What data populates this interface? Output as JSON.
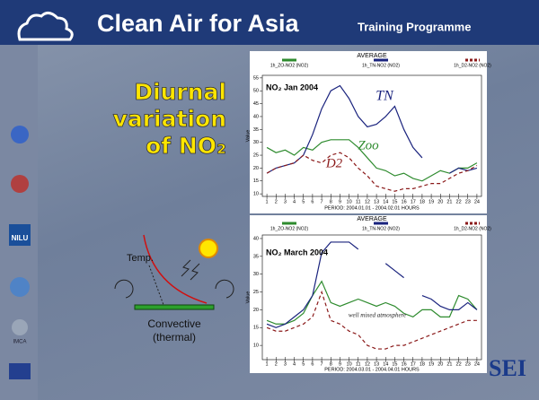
{
  "header": {
    "title": "Clean Air for Asia",
    "subtitle": "Training Programme"
  },
  "slide_title": [
    "Diurnal",
    "variation",
    "of NO₂"
  ],
  "diagram": {
    "temp_label": "Temp.",
    "caption": [
      "Convective",
      "(thermal)"
    ]
  },
  "logos": {
    "nilu": "NILU",
    "imca": "IMCA",
    "sei": "SEI"
  },
  "chart_data": [
    {
      "type": "line",
      "title": "AVERAGE",
      "x_label": "PERIOD: 2004.01.01 - 2004.02.01 HOURS",
      "y_label": "Value",
      "annotations": [
        "NO₂ Jan 2004",
        "TN",
        "Zoo",
        "D2"
      ],
      "x": [
        1,
        2,
        3,
        4,
        5,
        6,
        7,
        8,
        9,
        10,
        11,
        12,
        13,
        14,
        15,
        16,
        17,
        18,
        19,
        20,
        21,
        22,
        23,
        24
      ],
      "xlim": [
        0.5,
        24.5
      ],
      "ylim": [
        9,
        56
      ],
      "yticks": [
        10,
        15,
        20,
        25,
        30,
        35,
        40,
        45,
        50,
        55
      ],
      "series": [
        {
          "name": "1h_ZO-NO2 (NO2)",
          "color": "#2e8b2e",
          "dash": false,
          "values": [
            28,
            26,
            27,
            25,
            28,
            27,
            30,
            31,
            31,
            31,
            28,
            24,
            20,
            19,
            17,
            18,
            16,
            15,
            17,
            19,
            18,
            20,
            20,
            22
          ]
        },
        {
          "name": "1h_TN-NO2 (NO2)",
          "color": "#1a237e",
          "dash": false,
          "values": [
            18,
            20,
            21,
            22,
            25,
            33,
            43,
            50,
            52,
            47,
            40,
            36,
            37,
            40,
            44,
            35,
            28,
            24,
            null,
            null,
            18,
            20,
            19,
            20
          ]
        },
        {
          "name": "1h_D2-NO2 (NO2)",
          "color": "#8b1a1a",
          "dash": true,
          "values": [
            18,
            20,
            21,
            22,
            25,
            23,
            22,
            25,
            26,
            24,
            20,
            17,
            13,
            12,
            11,
            12,
            12,
            13,
            14,
            14,
            16,
            18,
            19,
            21
          ]
        }
      ]
    },
    {
      "type": "line",
      "title": "AVERAGE",
      "x_label": "PERIOD: 2004.03.01 - 2004.04.01 HOURS",
      "y_label": "Value",
      "annotations": [
        "NO₂ March 2004",
        "well mixed atmosphere"
      ],
      "x": [
        1,
        2,
        3,
        4,
        5,
        6,
        7,
        8,
        9,
        10,
        11,
        12,
        13,
        14,
        15,
        16,
        17,
        18,
        19,
        20,
        21,
        22,
        23,
        24
      ],
      "xlim": [
        0.5,
        24.5
      ],
      "ylim": [
        6,
        41
      ],
      "yticks": [
        10,
        15,
        20,
        25,
        30,
        35,
        40
      ],
      "series": [
        {
          "name": "1h_ZO-NO2 (NO2)",
          "color": "#2e8b2e",
          "dash": false,
          "values": [
            17,
            16,
            16,
            17,
            19,
            24,
            28,
            22,
            21,
            22,
            23,
            22,
            21,
            22,
            21,
            19,
            18,
            20,
            20,
            18,
            18,
            24,
            23,
            20
          ]
        },
        {
          "name": "1h_TN-NO2 (NO2)",
          "color": "#1a237e",
          "dash": false,
          "values": [
            16,
            15,
            16,
            18,
            20,
            24,
            36,
            39,
            39,
            39,
            37,
            null,
            null,
            33,
            31,
            29,
            null,
            24,
            23,
            21,
            20,
            20,
            22,
            20
          ]
        },
        {
          "name": "1h_D2-NO2 (NO2)",
          "color": "#8b1a1a",
          "dash": true,
          "values": [
            15,
            14,
            14,
            15,
            16,
            18,
            25,
            17,
            16,
            14,
            13,
            10,
            9,
            9,
            10,
            10,
            11,
            12,
            13,
            14,
            15,
            16,
            17,
            17
          ]
        }
      ]
    }
  ]
}
